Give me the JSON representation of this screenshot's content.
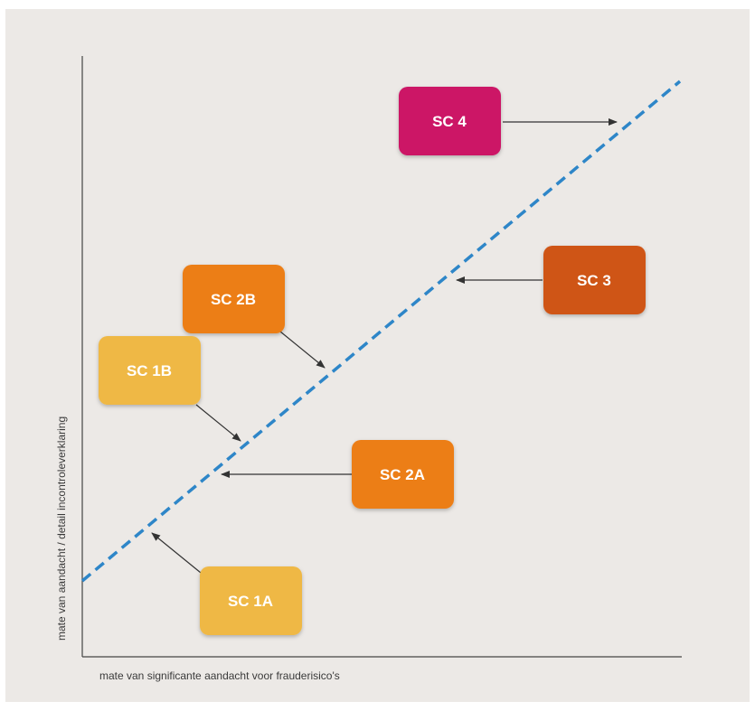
{
  "axes": {
    "x_label": "mate van significante aandacht voor frauderisico's",
    "y_label": "mate van aandacht / detail incontroleverklaring"
  },
  "colors": {
    "background": "#ece9e6",
    "axis": "#444444",
    "dashed_line": "#2e86c8",
    "arrow": "#333333",
    "sc4": "#cc1266",
    "sc3": "#cf5416",
    "sc2": "#ec7e14",
    "sc1": "#efb845"
  },
  "boxes": {
    "sc4": {
      "label": "SC 4"
    },
    "sc3": {
      "label": "SC 3"
    },
    "sc2b": {
      "label": "SC 2B"
    },
    "sc1b": {
      "label": "SC 1B"
    },
    "sc2a": {
      "label": "SC 2A"
    },
    "sc1a": {
      "label": "SC 1A"
    }
  }
}
